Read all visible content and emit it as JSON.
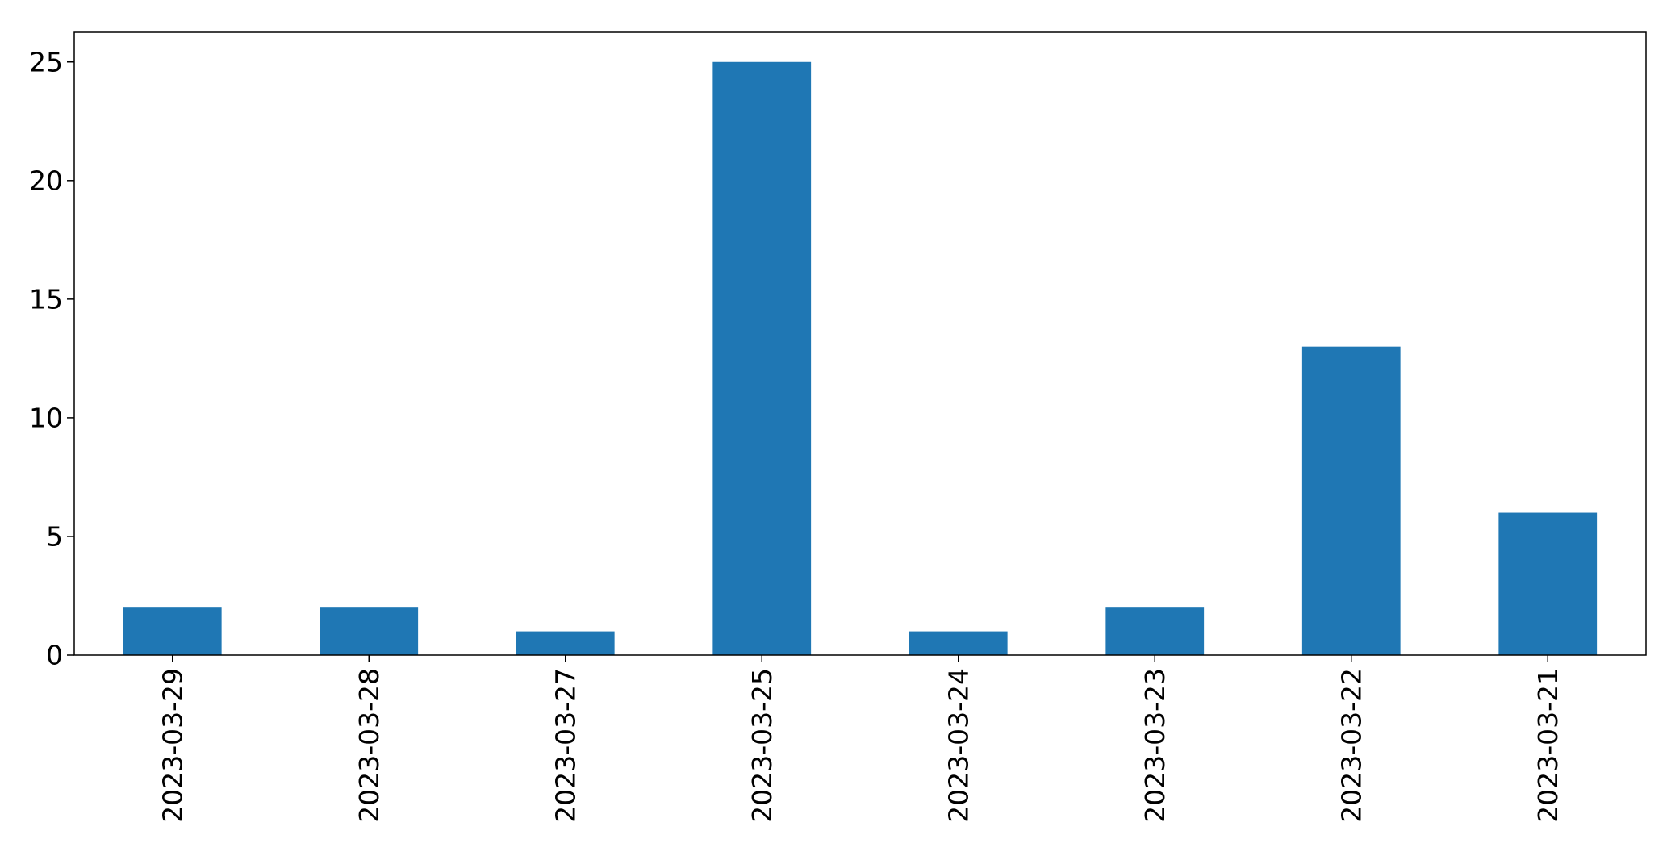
{
  "chart_data": {
    "type": "bar",
    "categories": [
      "2023-03-29",
      "2023-03-28",
      "2023-03-27",
      "2023-03-25",
      "2023-03-24",
      "2023-03-23",
      "2023-03-22",
      "2023-03-21"
    ],
    "values": [
      2,
      2,
      1,
      25,
      1,
      2,
      13,
      6
    ],
    "title": "",
    "xlabel": "",
    "ylabel": "",
    "ylim": [
      0,
      26.25
    ],
    "yticks": [
      0,
      5,
      10,
      15,
      20,
      25
    ],
    "grid": false,
    "legend": "none",
    "bar_color": "#1f77b4"
  }
}
